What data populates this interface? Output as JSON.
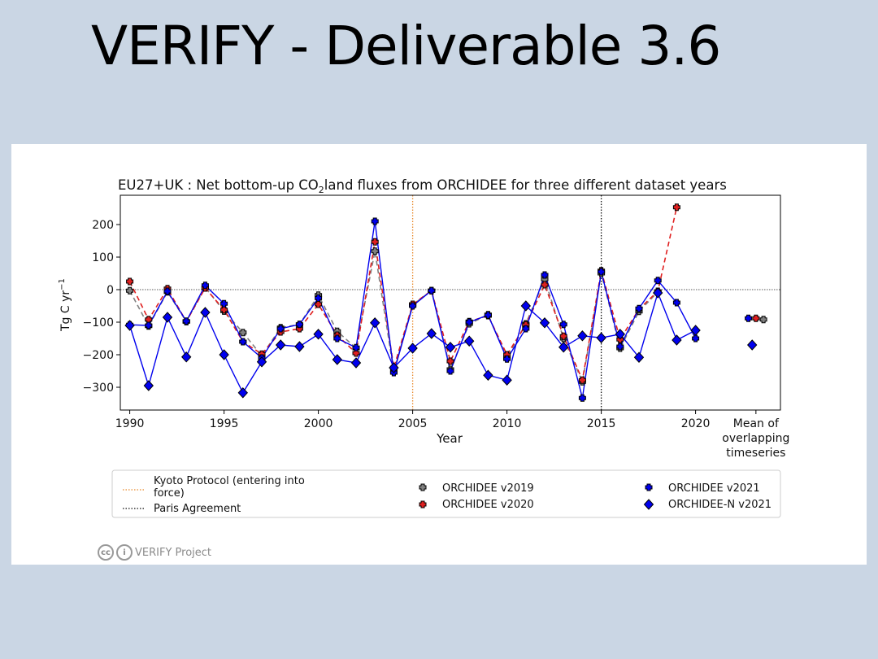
{
  "slide": {
    "title": "VERIFY - Deliverable 3.6",
    "footer": "VERIFY Project",
    "cc_badge": "cc",
    "by_badge": "i"
  },
  "chart_data": {
    "type": "line",
    "title_pre": "EU27+UK : Net bottom-up CO",
    "title_sub": "2",
    "title_post": "land fluxes from ORCHIDEE for three different dataset years",
    "xlabel": "Year",
    "ylabel": "Tg C yr",
    "ylabel_sup": "−1",
    "xlim": [
      1989.5,
      2024.5
    ],
    "ylim": [
      -370,
      290
    ],
    "xticks": [
      {
        "value": 1990,
        "label": "1990"
      },
      {
        "value": 1995,
        "label": "1995"
      },
      {
        "value": 2000,
        "label": "2000"
      },
      {
        "value": 2005,
        "label": "2005"
      },
      {
        "value": 2010,
        "label": "2010"
      },
      {
        "value": 2015,
        "label": "2015"
      },
      {
        "value": 2020,
        "label": "2020"
      }
    ],
    "extra_xtick": {
      "position": 2023.2,
      "lines": [
        "Mean of",
        "overlapping",
        "timeseries"
      ]
    },
    "yticks": [
      {
        "value": 200,
        "label": "200"
      },
      {
        "value": 100,
        "label": "100"
      },
      {
        "value": 0,
        "label": "0"
      },
      {
        "value": -100,
        "label": "−100"
      },
      {
        "value": -200,
        "label": "−200"
      },
      {
        "value": -300,
        "label": "−300"
      }
    ],
    "zero_line": true,
    "vlines": [
      {
        "name": "Kyoto Protocol (entering into force)",
        "x": 2005,
        "color": "#e8892b",
        "style": "dotted"
      },
      {
        "name": "Paris Agreement",
        "x": 2015,
        "color": "#111111",
        "style": "dotted"
      }
    ],
    "x": [
      1990,
      1991,
      1992,
      1993,
      1994,
      1995,
      1996,
      1997,
      1998,
      1999,
      2000,
      2001,
      2002,
      2003,
      2004,
      2005,
      2006,
      2007,
      2008,
      2009,
      2010,
      2011,
      2012,
      2013,
      2014,
      2015,
      2016,
      2017,
      2018,
      2019,
      2020
    ],
    "series": [
      {
        "name": "ORCHIDEE v2019",
        "color": "#808080",
        "marker": "plus",
        "line": "dashed",
        "values": [
          -3,
          -112,
          -7,
          -98,
          7,
          -66,
          -132,
          -203,
          -117,
          -107,
          -17,
          -128,
          -180,
          118,
          -252,
          -47,
          -3,
          -245,
          -105,
          -77,
          -210,
          -105,
          32,
          -150,
          -283,
          50,
          -180,
          -67,
          -7,
          null,
          null
        ],
        "mean": {
          "x": 2023.6,
          "y": -92
        }
      },
      {
        "name": "ORCHIDEE v2020",
        "color": "#e02020",
        "marker": "plus",
        "line": "dashed",
        "values": [
          25,
          -92,
          3,
          -98,
          5,
          -62,
          -160,
          -198,
          -130,
          -120,
          -45,
          -140,
          -195,
          147,
          -240,
          -45,
          -3,
          -220,
          -98,
          -80,
          -200,
          -108,
          15,
          -143,
          -278,
          58,
          -153,
          -60,
          -5,
          253,
          null
        ],
        "mean": {
          "x": 2023.2,
          "y": -88
        }
      },
      {
        "name": "ORCHIDEE v2021",
        "color": "#0000ee",
        "marker": "plus",
        "line": "solid",
        "values": [
          -108,
          -110,
          -5,
          -97,
          13,
          -43,
          -160,
          -210,
          -120,
          -107,
          -26,
          -150,
          -178,
          210,
          -255,
          -50,
          -3,
          -250,
          -100,
          -78,
          -213,
          -120,
          45,
          -107,
          -333,
          55,
          -175,
          -58,
          28,
          -40,
          -150
        ],
        "mean": {
          "x": 2022.8,
          "y": -88
        }
      },
      {
        "name": "ORCHIDEE-N v2021",
        "color": "#0000ee",
        "marker": "diamond",
        "line": "solid",
        "values": [
          -110,
          -295,
          -85,
          -207,
          -70,
          -200,
          -317,
          -222,
          -170,
          -175,
          -137,
          -215,
          -225,
          -102,
          -240,
          -180,
          -135,
          -177,
          -158,
          -263,
          -278,
          -50,
          -102,
          -177,
          -142,
          -148,
          -137,
          -208,
          -10,
          -155,
          -125
        ],
        "mean": {
          "x": 2023.0,
          "y": -170
        }
      }
    ],
    "legend": {
      "placement": "below",
      "lines": [
        {
          "label_lines": [
            "Kyoto Protocol (entering into",
            "force)"
          ],
          "color": "#e8892b"
        },
        {
          "label_lines": [
            "Paris Agreement"
          ],
          "color": "#111111"
        }
      ]
    }
  }
}
